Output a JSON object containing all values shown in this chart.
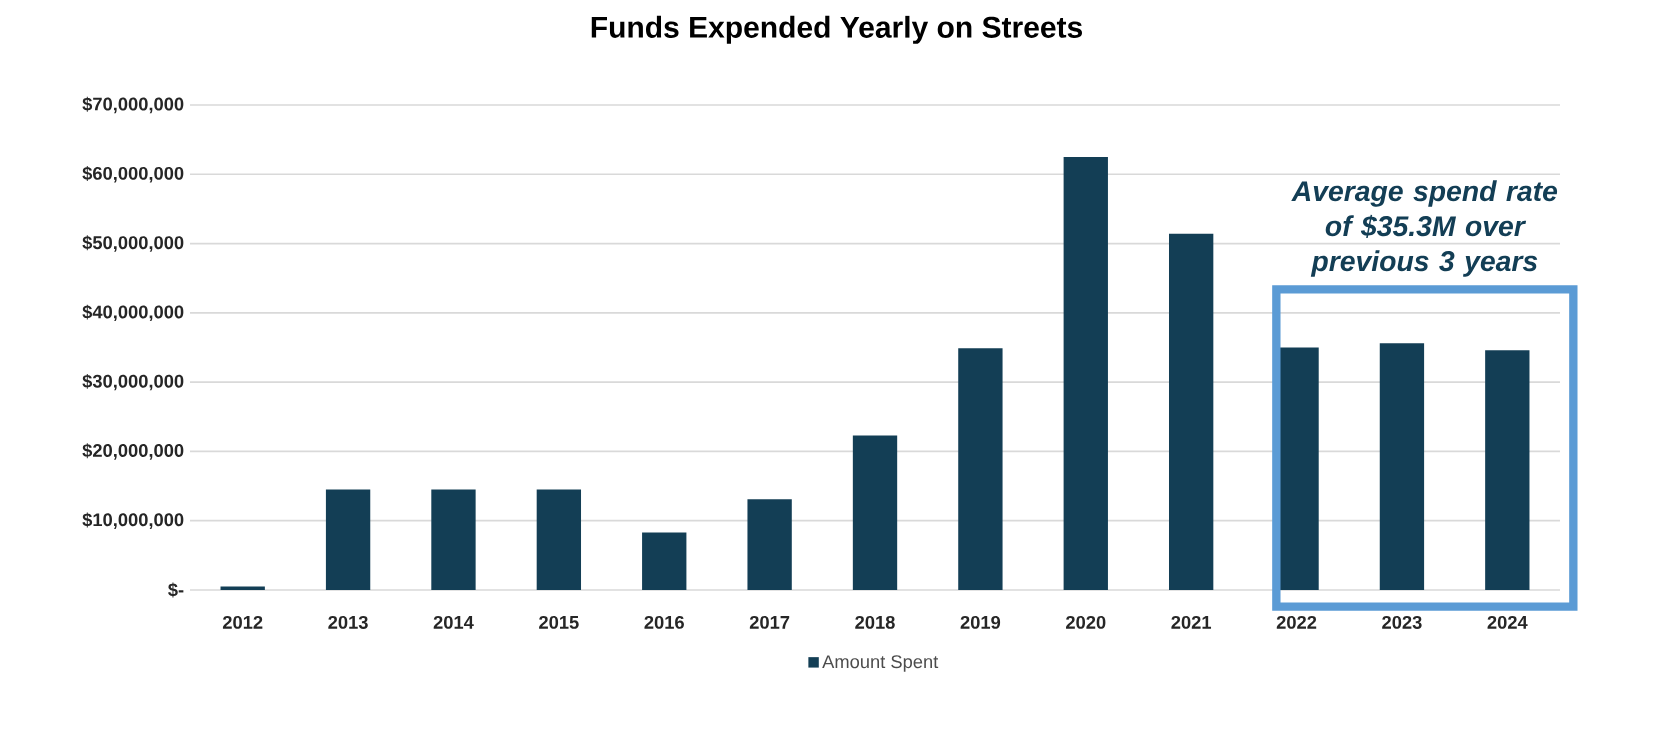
{
  "chart_data": {
    "type": "bar",
    "title": "Funds Expended Yearly on Streets",
    "categories": [
      "2012",
      "2013",
      "2014",
      "2015",
      "2016",
      "2017",
      "2018",
      "2019",
      "2020",
      "2021",
      "2022",
      "2023",
      "2024"
    ],
    "series": [
      {
        "name": "Amount Spent",
        "color": "#133e55",
        "values": [
          500000,
          14500000,
          14500000,
          14500000,
          8300000,
          13100000,
          22300000,
          34900000,
          62500000,
          51400000,
          35000000,
          35600000,
          34600000
        ]
      }
    ],
    "ylim": [
      0,
      70000000
    ],
    "yticks": [
      {
        "value": 0,
        "label": "$-"
      },
      {
        "value": 10000000,
        "label": "$10,000,000"
      },
      {
        "value": 20000000,
        "label": "$20,000,000"
      },
      {
        "value": 30000000,
        "label": "$30,000,000"
      },
      {
        "value": 40000000,
        "label": "$40,000,000"
      },
      {
        "value": 50000000,
        "label": "$50,000,000"
      },
      {
        "value": 60000000,
        "label": "$60,000,000"
      },
      {
        "value": 70000000,
        "label": "$70,000,000"
      }
    ],
    "annotations": [
      "Average spend rate of $35.3M over previous 3 years"
    ],
    "grid": "y",
    "legend": "bottom"
  }
}
